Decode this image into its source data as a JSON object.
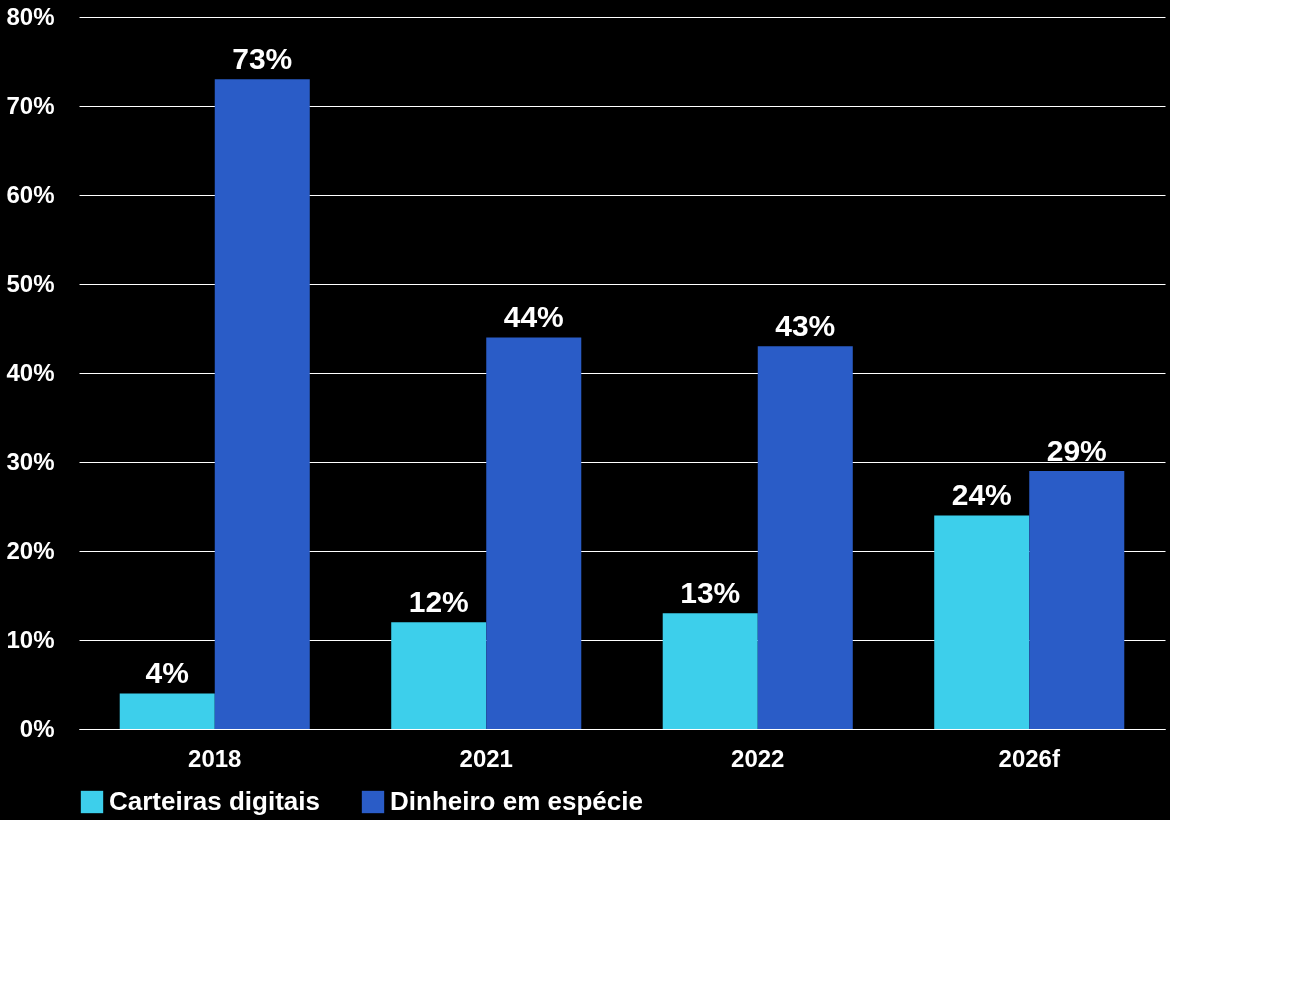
{
  "chart_data": {
    "type": "bar",
    "categories": [
      "2018",
      "2021",
      "2022",
      "2026f"
    ],
    "series": [
      {
        "name": "Carteiras digitais",
        "color": "#3dcfeb",
        "values": [
          4,
          12,
          13,
          24
        ],
        "value_labels": [
          "4%",
          "12%",
          "13%",
          "24%"
        ]
      },
      {
        "name": "Dinheiro em espécie",
        "color": "#2a5cc7",
        "values": [
          73,
          44,
          43,
          29
        ],
        "value_labels": [
          "73%",
          "44%",
          "43%",
          "29%"
        ]
      }
    ],
    "ylim": [
      0,
      80
    ],
    "yticks": [
      {
        "value": 0,
        "label": "0%"
      },
      {
        "value": 10,
        "label": "10%"
      },
      {
        "value": 20,
        "label": "20%"
      },
      {
        "value": 30,
        "label": "30%"
      },
      {
        "value": 40,
        "label": "40%"
      },
      {
        "value": 50,
        "label": "50%"
      },
      {
        "value": 60,
        "label": "60%"
      },
      {
        "value": 70,
        "label": "70%"
      },
      {
        "value": 80,
        "label": "80%"
      }
    ],
    "grid": "y",
    "legend": "bottom"
  }
}
